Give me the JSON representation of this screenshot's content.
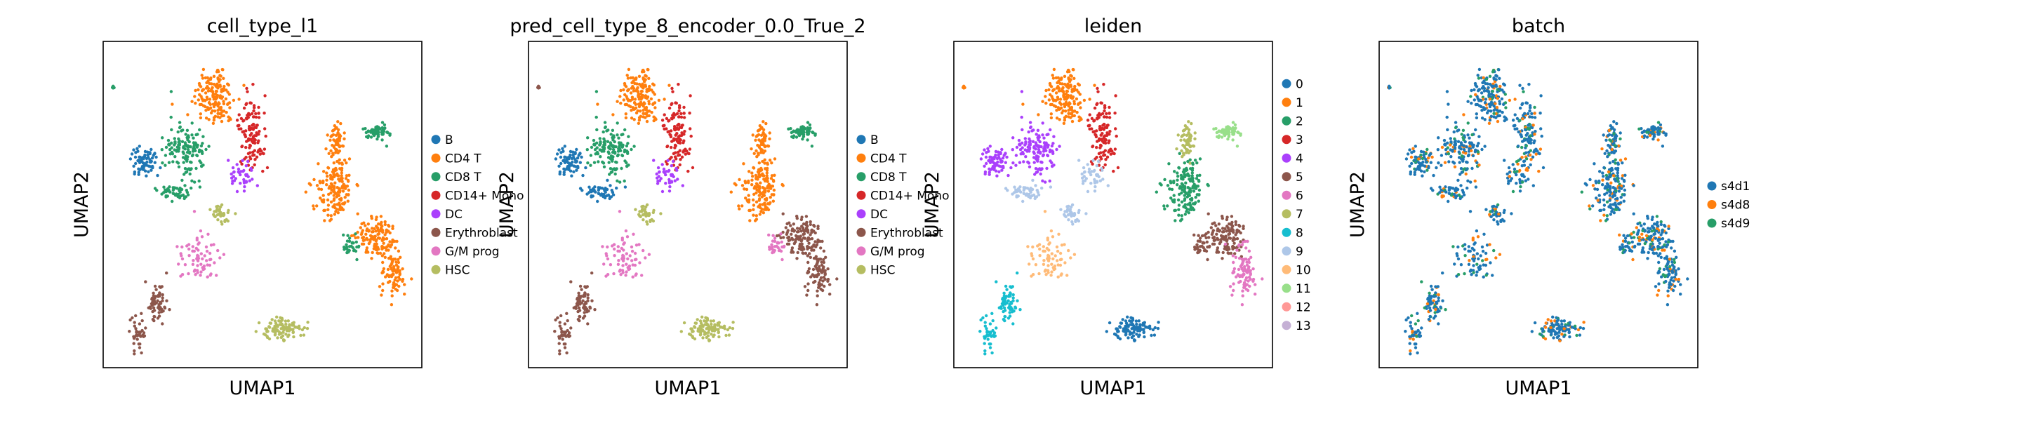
{
  "chart_data": [
    {
      "type": "scatter",
      "title": "cell_type_l1",
      "xlabel": "UMAP1",
      "ylabel": "UMAP2",
      "legend": "right",
      "grid": false,
      "color_by": "cell_type",
      "categories": [
        "B",
        "CD4 T",
        "CD8 T",
        "CD14+ Mono",
        "DC",
        "Erythroblast",
        "G/M prog",
        "HSC"
      ],
      "colors": [
        "#1f77b4",
        "#ff7f0e",
        "#279e68",
        "#d62728",
        "#aa40fc",
        "#8c564b",
        "#e377c2",
        "#b5bd61"
      ]
    },
    {
      "type": "scatter",
      "title": "pred_cell_type_8_encoder_0.0_True_2",
      "xlabel": "UMAP1",
      "ylabel": "UMAP2",
      "legend": "right",
      "grid": false,
      "color_by": "pred_type",
      "categories": [
        "B",
        "CD4 T",
        "CD8 T",
        "CD14+ Mono",
        "DC",
        "Erythroblast",
        "G/M prog",
        "HSC"
      ],
      "colors": [
        "#1f77b4",
        "#ff7f0e",
        "#279e68",
        "#d62728",
        "#aa40fc",
        "#8c564b",
        "#e377c2",
        "#b5bd61"
      ]
    },
    {
      "type": "scatter",
      "title": "leiden",
      "xlabel": "UMAP1",
      "ylabel": "UMAP2",
      "legend": "right",
      "grid": false,
      "color_by": "leiden",
      "categories": [
        "0",
        "1",
        "2",
        "3",
        "4",
        "5",
        "6",
        "7",
        "8",
        "9",
        "10",
        "11",
        "12",
        "13"
      ],
      "colors": [
        "#1f77b4",
        "#ff7f0e",
        "#279e68",
        "#d62728",
        "#aa40fc",
        "#8c564b",
        "#e377c2",
        "#b5bd61",
        "#17becf",
        "#aec7e8",
        "#ffbb78",
        "#98df8a",
        "#ff9896",
        "#c5b0d5"
      ]
    },
    {
      "type": "scatter",
      "title": "batch",
      "xlabel": "UMAP1",
      "ylabel": "UMAP2",
      "legend": "right",
      "grid": false,
      "color_by": "batch",
      "categories": [
        "s4d1",
        "s4d8",
        "s4d9"
      ],
      "colors": [
        "#1f77b4",
        "#ff7f0e",
        "#279e68"
      ]
    }
  ]
}
